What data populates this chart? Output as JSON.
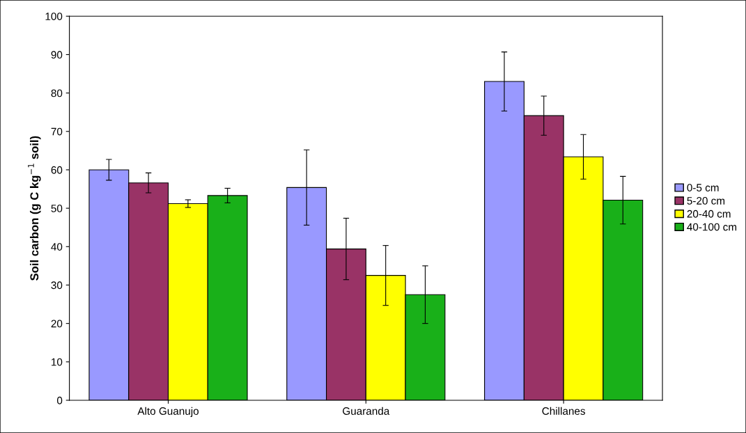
{
  "chart_data": {
    "type": "bar",
    "ylabel": "Soil carbon (g C kg$^{−1}$ soil)",
    "categories": [
      "Alto Guanujo",
      "Guaranda",
      "Chillanes"
    ],
    "series": [
      {
        "name": "0-5 cm",
        "color": "#9999ff",
        "values": [
          60,
          55.4,
          83
        ],
        "errors": [
          2.7,
          9.8,
          7.7
        ]
      },
      {
        "name": "5-20 cm",
        "color": "#993366",
        "values": [
          56.6,
          39.4,
          74.1
        ],
        "errors": [
          2.6,
          8,
          5.1
        ]
      },
      {
        "name": "20-40 cm",
        "color": "#ffff00",
        "values": [
          51.2,
          32.5,
          63.4
        ],
        "errors": [
          1,
          7.8,
          5.8
        ]
      },
      {
        "name": "40-100 cm",
        "color": "#19b019",
        "values": [
          53.3,
          27.5,
          52.1
        ],
        "errors": [
          1.9,
          7.5,
          6.2
        ]
      }
    ],
    "ylim": [
      0,
      100
    ],
    "yticks": [
      0,
      10,
      20,
      30,
      40,
      50,
      60,
      70,
      80,
      90,
      100
    ],
    "grid": false,
    "legend": "right"
  }
}
